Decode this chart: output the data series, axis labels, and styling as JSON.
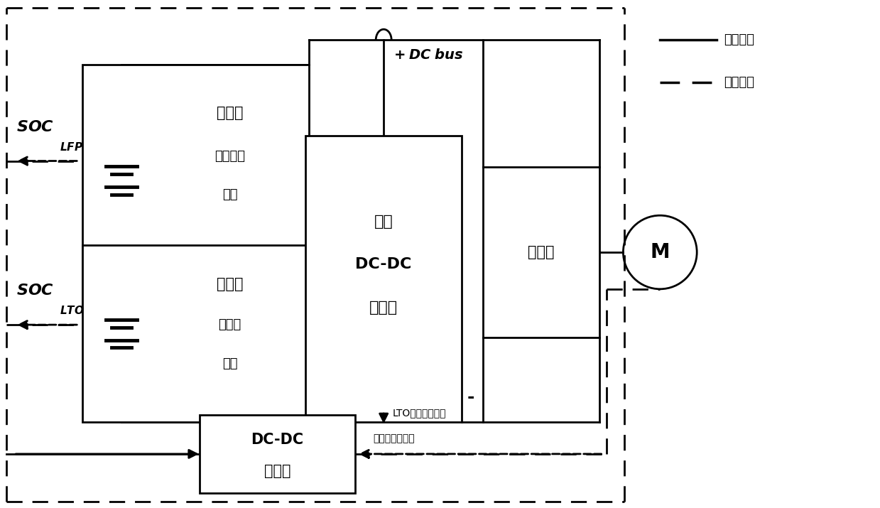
{
  "figsize": [
    12.39,
    7.15
  ],
  "dpi": 100,
  "lw": 2.0,
  "blw": 2.0,
  "main_batt_line1": "主电池",
  "main_batt_line2": "磷酸铁锂",
  "main_batt_line3": "电池",
  "aux_batt_line1": "副电池",
  "aux_batt_line2": "钓酸锂",
  "aux_batt_line3": "电池",
  "dcdc_line1": "双向",
  "dcdc_line2": "DC-DC",
  "dcdc_line3": "转换器",
  "inverter_label": "逆变器",
  "ctrl_line1": "DC-DC",
  "ctrl_line2": "控制器",
  "motor_label": "M",
  "dc_bus_text": "DC bus",
  "minus_text": "-",
  "soc_lfp_main": "SOC",
  "soc_lfp_sub": "LFP",
  "soc_lto_main": "SOC",
  "soc_lto_sub": "LTO",
  "legend_solid": "电力传输",
  "legend_dashed": "信号传输",
  "lto_signal": "LTO电池功率信号",
  "total_signal": "总功率需求信号"
}
